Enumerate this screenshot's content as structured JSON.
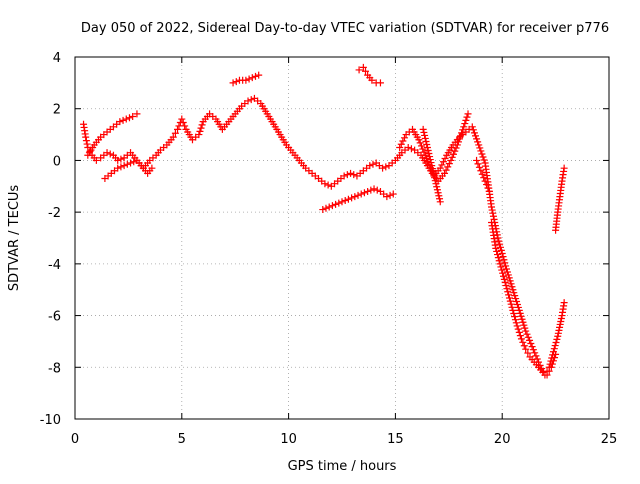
{
  "chart_data": {
    "type": "scatter",
    "title": "Day 050 of 2022, Sidereal Day-to-day VTEC variation (SDTVAR) for receiver p776",
    "xlabel": "GPS time / hours",
    "ylabel": "SDTVAR / TECUs",
    "xlim": [
      0,
      25
    ],
    "ylim": [
      -10,
      4
    ],
    "xticks": [
      0,
      5,
      10,
      15,
      20,
      25
    ],
    "yticks": [
      -10,
      -8,
      -6,
      -4,
      -2,
      0,
      2,
      4
    ],
    "xtick_labels": [
      "0",
      "5",
      "10",
      "15",
      "20",
      "25"
    ],
    "ytick_labels": [
      "-10",
      "-8",
      "-6",
      "-4",
      "-2",
      "0",
      "2",
      "4"
    ],
    "grid": true,
    "marker": "+",
    "colors": {
      "series": "#ff0000",
      "grid": "#a0a0a0",
      "axes": "#000000"
    },
    "series": [
      {
        "color": "#ff0000",
        "x": [
          0.4,
          0.5,
          0.6,
          0.8,
          1.0,
          1.2,
          1.5,
          1.8,
          2.0,
          2.3,
          2.6,
          2.9,
          3.2,
          3.5,
          3.8,
          4.0,
          4.3,
          4.6,
          4.8,
          5.0,
          5.2,
          5.5,
          5.8,
          6.0,
          6.3,
          6.6,
          6.9,
          7.2,
          7.5,
          7.8,
          8.1,
          8.4,
          8.7,
          9.0,
          9.3,
          9.6,
          9.9,
          10.2,
          10.5,
          10.8,
          11.1,
          11.4,
          11.7,
          12.0,
          12.3,
          12.6,
          12.9,
          13.2,
          13.5,
          13.8,
          14.1,
          14.4,
          14.7,
          15.0,
          15.3,
          15.6,
          15.9,
          16.2,
          16.5,
          16.8,
          17.1,
          17.4,
          17.7,
          18.0,
          18.3,
          18.6,
          18.9,
          19.2,
          19.5,
          19.8,
          20.0,
          20.2,
          20.5,
          20.8,
          21.1,
          21.4,
          21.7,
          22.0,
          22.2,
          22.4,
          22.6,
          22.8,
          22.9
        ],
        "y": [
          1.4,
          0.9,
          0.5,
          0.2,
          0.0,
          0.1,
          0.3,
          0.2,
          0.0,
          0.1,
          0.3,
          0.0,
          -0.3,
          0.0,
          0.2,
          0.4,
          0.6,
          0.9,
          1.2,
          1.6,
          1.2,
          0.8,
          1.0,
          1.5,
          1.8,
          1.6,
          1.2,
          1.5,
          1.8,
          2.1,
          2.3,
          2.4,
          2.2,
          1.8,
          1.4,
          1.0,
          0.6,
          0.3,
          0.0,
          -0.3,
          -0.5,
          -0.7,
          -0.9,
          -1.0,
          -0.8,
          -0.6,
          -0.5,
          -0.6,
          -0.4,
          -0.2,
          -0.1,
          -0.3,
          -0.2,
          0.0,
          0.3,
          0.5,
          0.4,
          0.2,
          -0.2,
          -0.6,
          -0.3,
          0.2,
          0.6,
          0.9,
          1.1,
          1.3,
          0.6,
          -0.1,
          -1.8,
          -3.0,
          -3.6,
          -4.2,
          -5.0,
          -5.8,
          -6.6,
          -7.2,
          -7.8,
          -8.3,
          -8.0,
          -7.4,
          -6.8,
          -6.0,
          -5.5
        ]
      },
      {
        "color": "#ff0000",
        "x": [
          0.6,
          0.9,
          1.2,
          1.5,
          1.8,
          2.1,
          2.4,
          2.7,
          2.9
        ],
        "y": [
          0.2,
          0.6,
          0.9,
          1.1,
          1.3,
          1.5,
          1.6,
          1.7,
          1.8
        ]
      },
      {
        "color": "#ff0000",
        "x": [
          1.4,
          1.7,
          2.0,
          2.3,
          2.6,
          2.9,
          3.2,
          3.4,
          3.6
        ],
        "y": [
          -0.7,
          -0.5,
          -0.3,
          -0.2,
          -0.1,
          0.0,
          -0.3,
          -0.5,
          -0.3
        ]
      },
      {
        "color": "#ff0000",
        "x": [
          7.4,
          7.7,
          8.0,
          8.3,
          8.6
        ],
        "y": [
          3.0,
          3.1,
          3.1,
          3.2,
          3.3
        ]
      },
      {
        "color": "#ff0000",
        "x": [
          13.3,
          13.5,
          13.7,
          13.9,
          14.1,
          14.3
        ],
        "y": [
          3.5,
          3.6,
          3.3,
          3.1,
          3.0,
          3.0
        ]
      },
      {
        "color": "#ff0000",
        "x": [
          11.6,
          11.9,
          12.2,
          12.5,
          12.8,
          13.1,
          13.4,
          13.7,
          14.0,
          14.3,
          14.6,
          14.9
        ],
        "y": [
          -1.9,
          -1.8,
          -1.7,
          -1.6,
          -1.5,
          -1.4,
          -1.3,
          -1.2,
          -1.1,
          -1.2,
          -1.4,
          -1.3
        ]
      },
      {
        "color": "#ff0000",
        "x": [
          16.3,
          16.5,
          16.7,
          16.9,
          17.1
        ],
        "y": [
          1.2,
          0.5,
          -0.2,
          -0.9,
          -1.6
        ]
      },
      {
        "color": "#ff0000",
        "x": [
          18.8,
          19.0,
          19.2,
          19.4
        ],
        "y": [
          0.0,
          -0.4,
          -0.8,
          -1.2
        ]
      },
      {
        "color": "#ff0000",
        "x": [
          19.5,
          19.7,
          19.9,
          20.1,
          20.3,
          20.5,
          20.7,
          20.9,
          21.1,
          21.3,
          21.5,
          21.7,
          21.9,
          22.1,
          22.3,
          22.5
        ],
        "y": [
          -2.4,
          -3.4,
          -4.0,
          -4.6,
          -5.2,
          -5.8,
          -6.4,
          -6.9,
          -7.3,
          -7.6,
          -7.8,
          -8.0,
          -8.2,
          -8.3,
          -8.0,
          -7.5
        ]
      },
      {
        "color": "#ff0000",
        "x": [
          22.5,
          22.6,
          22.7,
          22.8,
          22.9
        ],
        "y": [
          -2.7,
          -2.0,
          -1.4,
          -0.8,
          -0.3
        ]
      },
      {
        "color": "#ff0000",
        "x": [
          15.2,
          15.5,
          15.8,
          16.1,
          16.4,
          16.7,
          17.0,
          17.3,
          17.6,
          17.9,
          18.2,
          18.4
        ],
        "y": [
          0.5,
          1.0,
          1.2,
          0.8,
          0.2,
          -0.4,
          -0.8,
          -0.5,
          0.0,
          0.6,
          1.3,
          1.8
        ]
      }
    ]
  }
}
